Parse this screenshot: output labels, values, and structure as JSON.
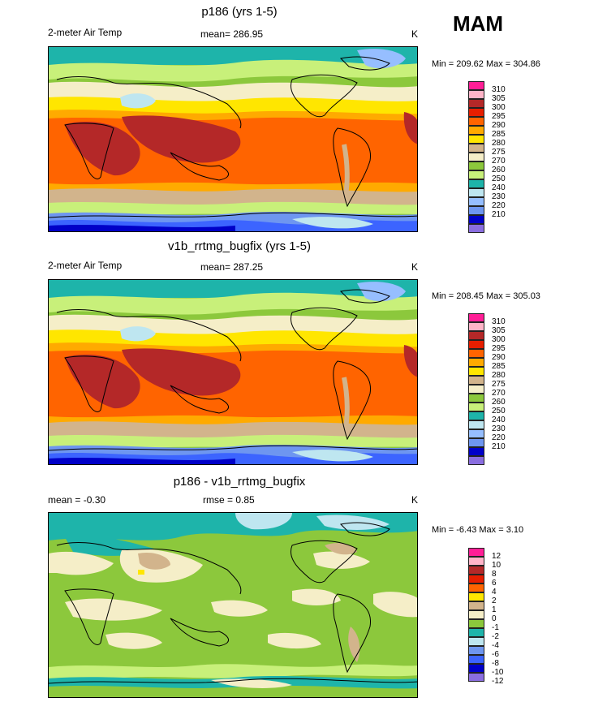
{
  "season": "MAM",
  "colors": {
    "abs": [
      "#8a6ee0",
      "#0000c8",
      "#3c64ff",
      "#6e96f0",
      "#96beff",
      "#bee6f0",
      "#1eb4aa",
      "#8cc83c",
      "#c8f07a",
      "#f5eec8",
      "#d2b48c",
      "#ffe600",
      "#ffaa00",
      "#ff6400",
      "#e61e00",
      "#b42828",
      "#ffb4c8",
      "#ff1e96"
    ],
    "diff": [
      "#8a6ee0",
      "#0000c8",
      "#3c64ff",
      "#6e96f0",
      "#bee6f0",
      "#1eb4aa",
      "#8cc83c",
      "#f5eec8",
      "#d2b48c",
      "#ffe600",
      "#ff6400",
      "#e61e00",
      "#b42828",
      "#ffb4c8",
      "#ff1e96"
    ]
  },
  "panels": [
    {
      "title": "p186 (yrs 1-5)",
      "left_label": "2-meter Air Temp",
      "center_label": "mean= 286.95",
      "units": "K",
      "minmax": "Min = 209.62 Max = 304.86",
      "colorbar_labels": [
        "310",
        "305",
        "300",
        "295",
        "290",
        "285",
        "280",
        "275",
        "270",
        "260",
        "250",
        "240",
        "230",
        "220",
        "210"
      ]
    },
    {
      "title": "v1b_rrtmg_bugfix (yrs 1-5)",
      "left_label": "2-meter Air Temp",
      "center_label": "mean= 287.25",
      "units": "K",
      "minmax": "Min = 208.45 Max = 305.03",
      "colorbar_labels": [
        "310",
        "305",
        "300",
        "295",
        "290",
        "285",
        "280",
        "275",
        "270",
        "260",
        "250",
        "240",
        "230",
        "220",
        "210"
      ]
    },
    {
      "title": "p186 - v1b_rrtmg_bugfix",
      "left_label": "mean =  -0.30",
      "center_label": "rmse =   0.85",
      "units": "K",
      "minmax": "Min =  -6.43 Max =   3.10",
      "colorbar_labels": [
        "12",
        "10",
        "8",
        "6",
        "4",
        "2",
        "1",
        "0",
        "-1",
        "-2",
        "-4",
        "-6",
        "-8",
        "-10",
        "-12"
      ]
    }
  ]
}
